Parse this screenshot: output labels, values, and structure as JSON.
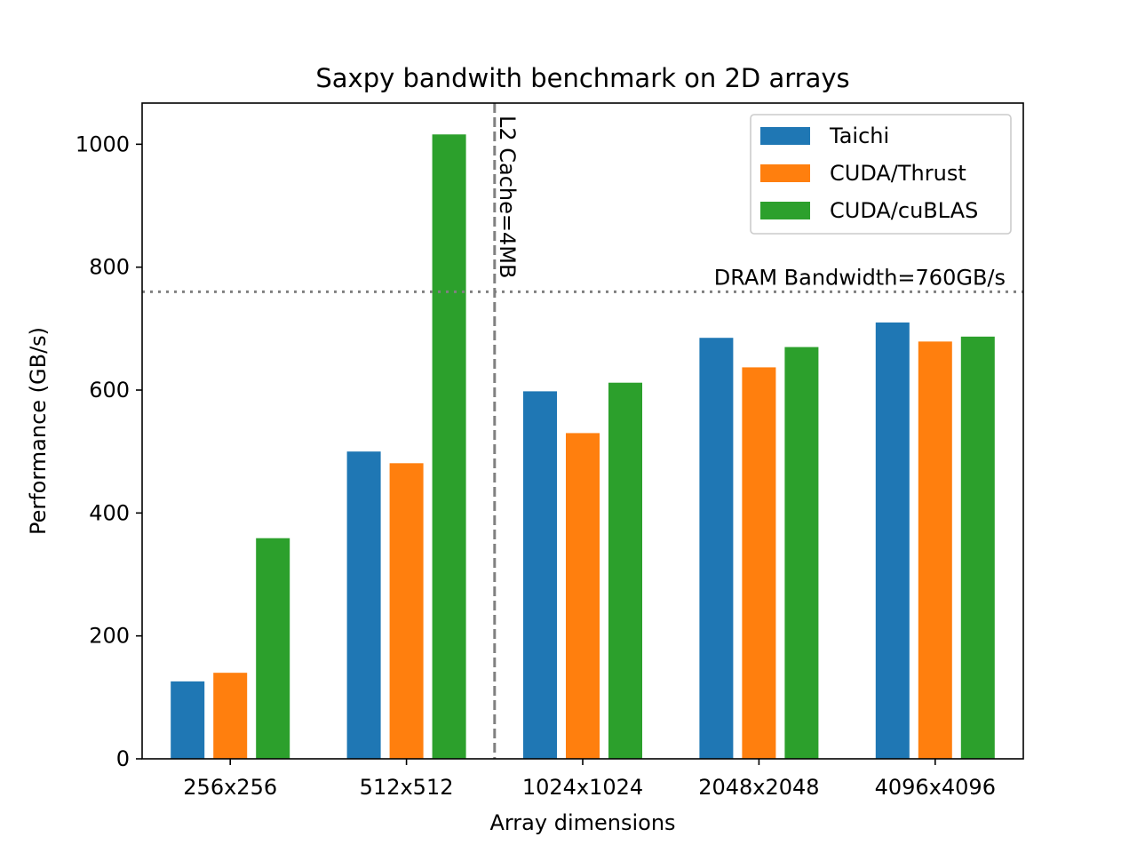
{
  "chart_data": {
    "type": "bar",
    "title": "Saxpy bandwith benchmark on 2D arrays",
    "xlabel": "Array dimensions",
    "ylabel": "Performance (GB/s)",
    "categories": [
      "256x256",
      "512x512",
      "1024x1024",
      "2048x2048",
      "4096x4096"
    ],
    "series": [
      {
        "name": "Taichi",
        "color": "#1f77b4",
        "values": [
          126,
          500,
          598,
          685,
          710
        ]
      },
      {
        "name": "CUDA/Thrust",
        "color": "#ff7f0e",
        "values": [
          140,
          481,
          530,
          637,
          679
        ]
      },
      {
        "name": "CUDA/cuBLAS",
        "color": "#2ca02c",
        "values": [
          359,
          1016,
          612,
          670,
          687
        ]
      }
    ],
    "ylim": [
      0,
      1067
    ],
    "yticks": [
      0,
      200,
      400,
      600,
      800,
      1000
    ],
    "legend_position": "top-right",
    "grid": false,
    "annotations": {
      "dram": {
        "label": "DRAM Bandwidth=760GB/s",
        "value": 760,
        "style": "dotted",
        "color": "#808080"
      },
      "l2": {
        "label": "L2 Cache=4MB",
        "between": [
          "512x512",
          "1024x1024"
        ],
        "style": "dashed",
        "color": "#808080"
      }
    }
  }
}
